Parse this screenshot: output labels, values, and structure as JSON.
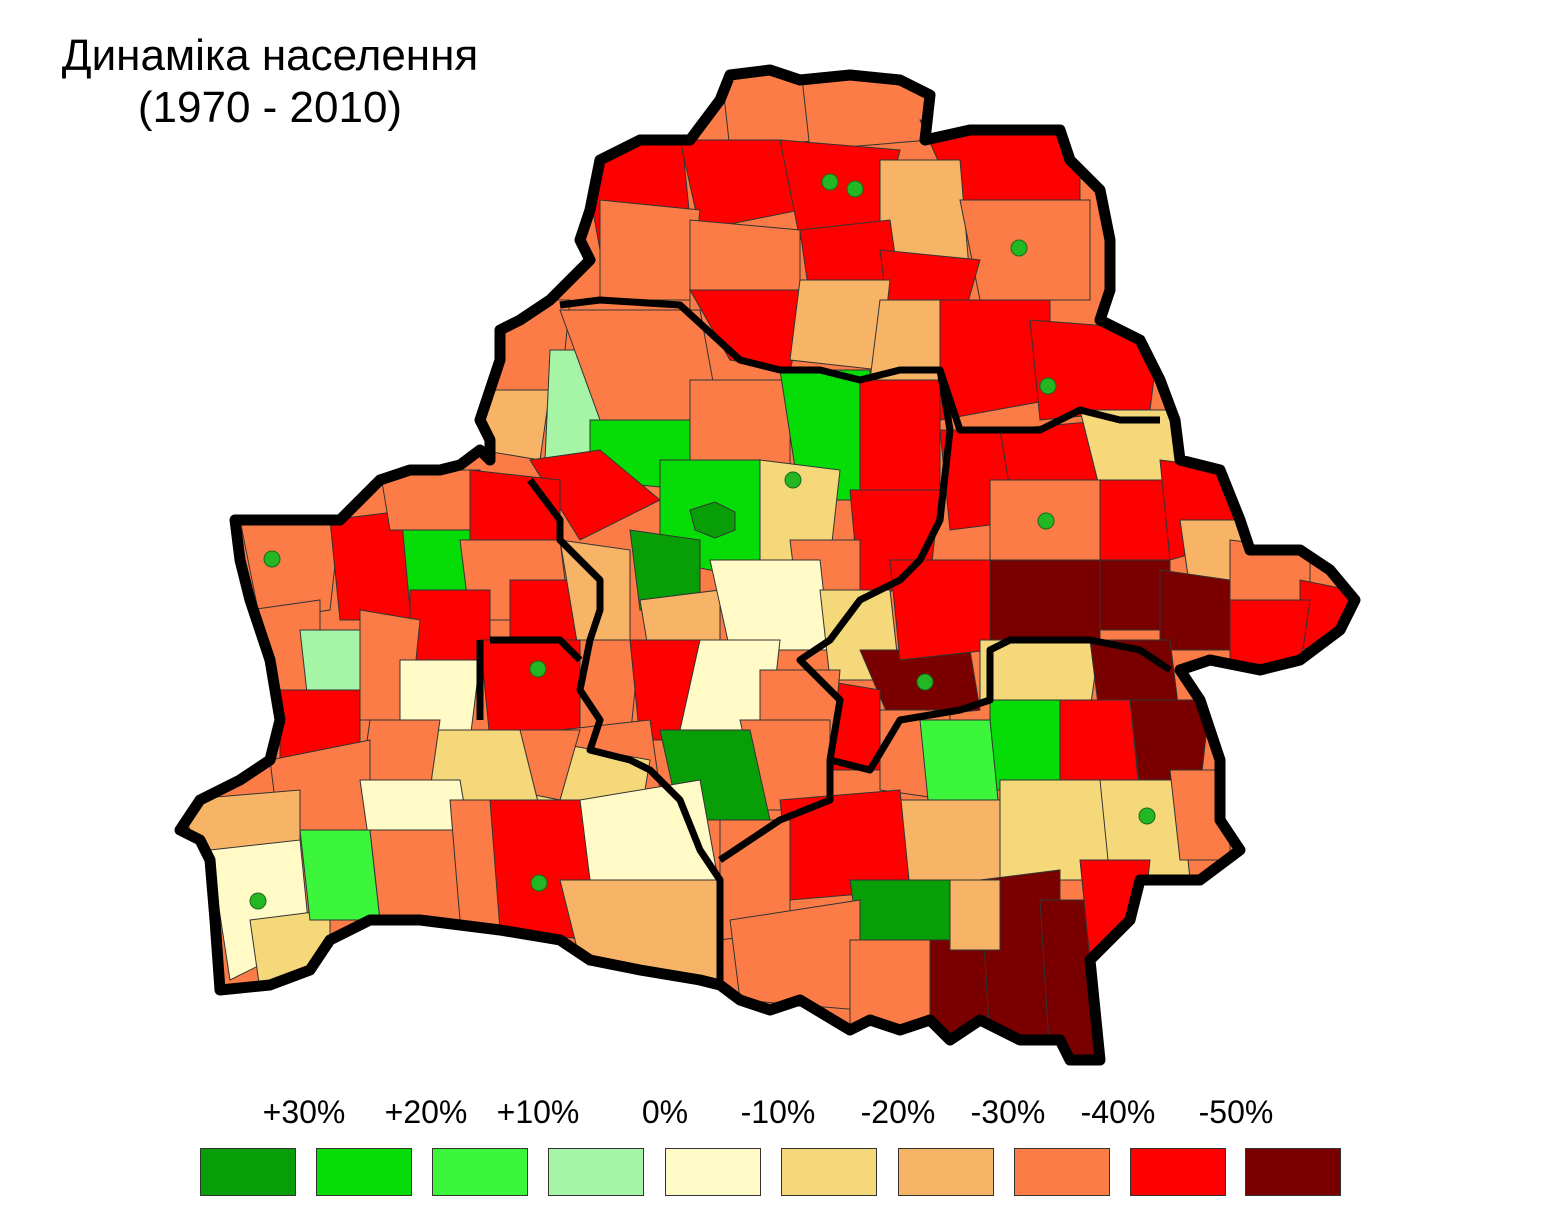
{
  "title": {
    "line1": "Динаміка населення",
    "line2": "(1970 - 2010)"
  },
  "colors": {
    "g30": "#089e08",
    "g20": "#06dc06",
    "g10": "#3cf63c",
    "z0": "#a6f5a6",
    "m10": "#fffac6",
    "m20": "#f5d87a",
    "m30": "#f7b466",
    "m40": "#fb7c46",
    "m50": "#ff0000",
    "m60": "#7a0000",
    "dot": "#23b823",
    "border": "#000000"
  },
  "legend": [
    {
      "label": "+30%",
      "color": "#089e08"
    },
    {
      "label": "+20%",
      "color": "#06dc06"
    },
    {
      "label": "+10%",
      "color": "#3cf63c"
    },
    {
      "label": "0%",
      "color": "#a6f5a6"
    },
    {
      "label": "-10%",
      "color": "#fffac6"
    },
    {
      "label": "-20%",
      "color": "#f5d87a"
    },
    {
      "label": "-30%",
      "color": "#f7b466"
    },
    {
      "label": "-40%",
      "color": "#fb7c46"
    },
    {
      "label": "-50%",
      "color": "#ff0000"
    },
    {
      "label": "",
      "color": "#7a0000"
    }
  ],
  "legend_extra_label": "-50%"
}
